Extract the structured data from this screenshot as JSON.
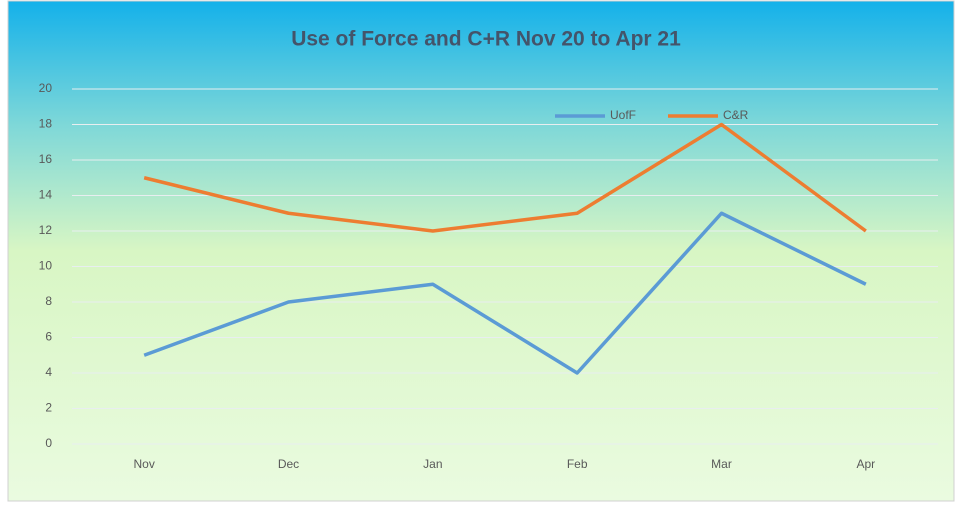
{
  "chart_data": {
    "type": "line",
    "title": "Use of Force and C+R Nov 20 to Apr 21",
    "categories": [
      "Nov",
      "Dec",
      "Jan",
      "Feb",
      "Mar",
      "Apr"
    ],
    "series": [
      {
        "name": "UofF",
        "color": "#5b9bd5",
        "values": [
          5,
          8,
          9,
          4,
          13,
          9
        ]
      },
      {
        "name": "C&R",
        "color": "#ed7d31",
        "values": [
          15,
          13,
          12,
          13,
          18,
          12
        ]
      }
    ],
    "ylim": [
      0,
      20
    ],
    "yticks": [
      0,
      2,
      4,
      6,
      8,
      10,
      12,
      14,
      16,
      18,
      20
    ],
    "grid": true,
    "legend": "top-right"
  }
}
